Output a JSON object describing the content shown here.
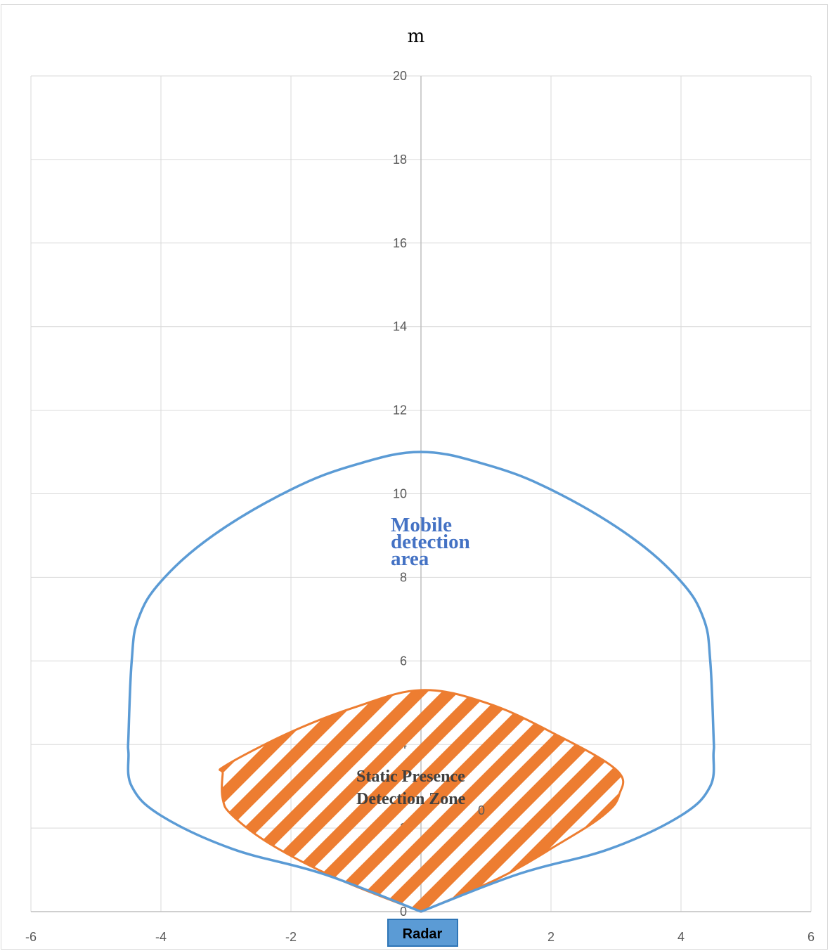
{
  "chart_data": {
    "type": "area",
    "unit_label": "m",
    "xlim": [
      -6,
      6
    ],
    "ylim": [
      0,
      20
    ],
    "x_ticks": [
      "-6",
      "-4",
      "-2",
      "0",
      "2",
      "4",
      "6"
    ],
    "y_ticks": [
      "0",
      "2",
      "4",
      "6",
      "8",
      "10",
      "12",
      "14",
      "16",
      "18",
      "20"
    ],
    "grid": true,
    "series": [
      {
        "name": "Mobile detection area",
        "color": "#5b9bd5",
        "fill": "none",
        "points": [
          [
            0,
            0
          ],
          [
            -1.5,
            0.9
          ],
          [
            -2.9,
            1.5
          ],
          [
            -4.0,
            2.3
          ],
          [
            -4.45,
            3.0
          ],
          [
            -4.5,
            3.8
          ],
          [
            -4.5,
            4.2
          ],
          [
            -4.45,
            6.0
          ],
          [
            -4.35,
            7.0
          ],
          [
            -4.0,
            7.9
          ],
          [
            -3.2,
            9.0
          ],
          [
            -2.0,
            10.1
          ],
          [
            -1.0,
            10.7
          ],
          [
            0,
            11.0
          ],
          [
            1.0,
            10.7
          ],
          [
            2.0,
            10.1
          ],
          [
            3.2,
            9.0
          ],
          [
            4.0,
            7.9
          ],
          [
            4.35,
            7.0
          ],
          [
            4.45,
            6.0
          ],
          [
            4.5,
            4.2
          ],
          [
            4.5,
            3.8
          ],
          [
            4.45,
            3.0
          ],
          [
            4.0,
            2.3
          ],
          [
            2.9,
            1.5
          ],
          [
            1.5,
            0.9
          ],
          [
            0,
            0
          ]
        ]
      },
      {
        "name": "Static Presence Detection Zone",
        "color": "#ed7d31",
        "fill": "hatched",
        "points": [
          [
            0,
            0
          ],
          [
            -1.3,
            0.8
          ],
          [
            -2.3,
            1.6
          ],
          [
            -2.9,
            2.3
          ],
          [
            -3.05,
            2.7
          ],
          [
            -3.05,
            3.3
          ],
          [
            -3.0,
            3.5
          ],
          [
            -2.0,
            4.3
          ],
          [
            -1.0,
            4.9
          ],
          [
            0,
            5.3
          ],
          [
            1.0,
            5.0
          ],
          [
            2.0,
            4.3
          ],
          [
            3.0,
            3.4
          ],
          [
            3.05,
            2.8
          ],
          [
            2.8,
            2.3
          ],
          [
            2.1,
            1.6
          ],
          [
            1.2,
            0.8
          ],
          [
            0,
            0
          ]
        ]
      }
    ],
    "annotations": {
      "mobile_label": [
        "Mobile",
        "detection",
        "area"
      ],
      "static_label": [
        "Static Presence",
        "Detection Zone"
      ],
      "stray_label": "0",
      "radar_label": "Radar"
    }
  }
}
